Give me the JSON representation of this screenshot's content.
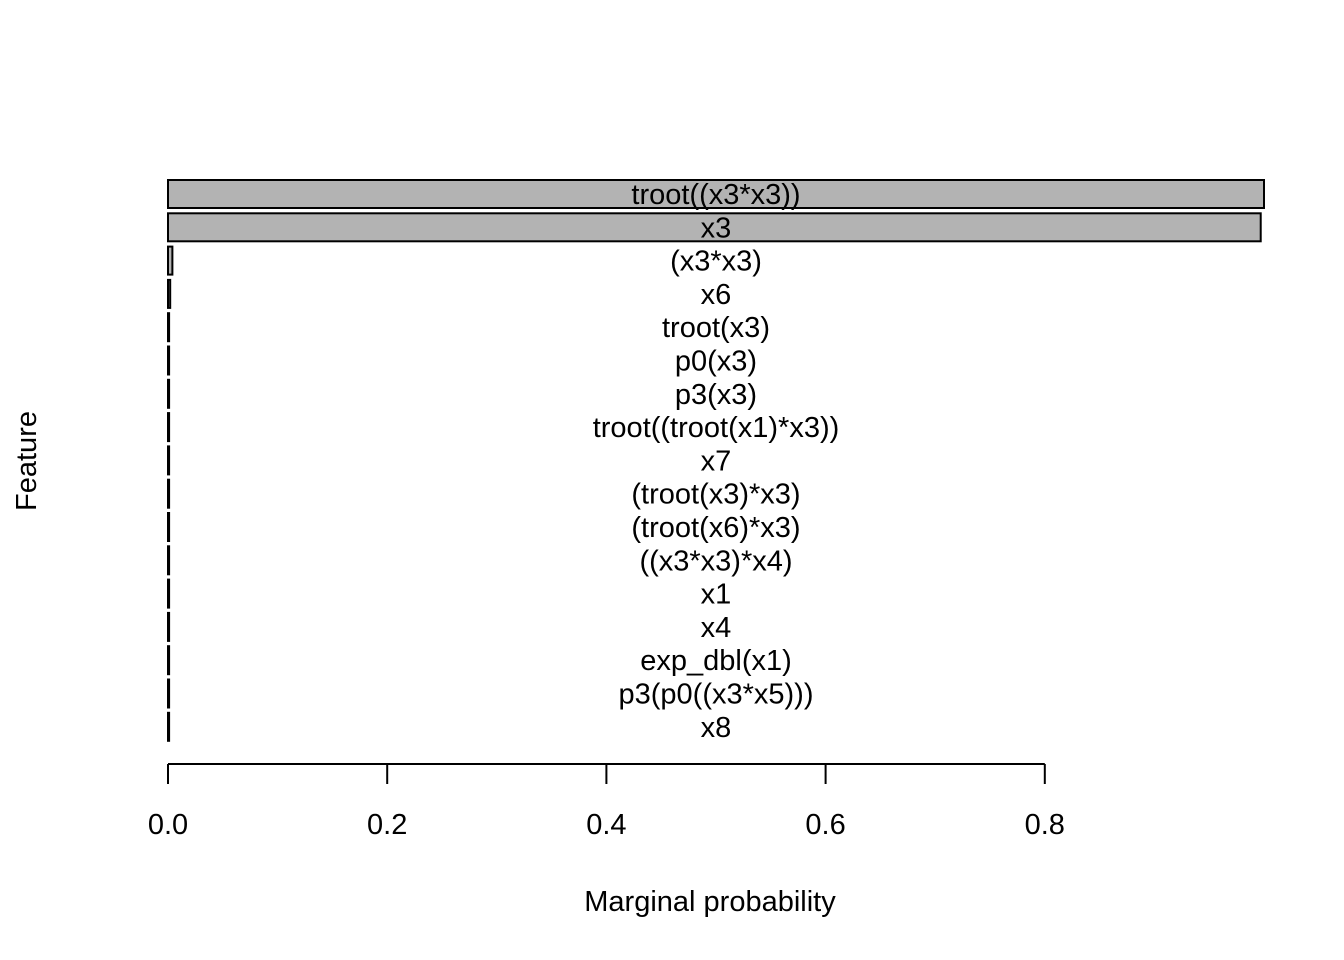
{
  "chart_data": {
    "type": "bar",
    "orientation": "horizontal",
    "title": "",
    "xlabel": "Marginal probability",
    "ylabel": "Feature",
    "xlim": [
      0,
      1
    ],
    "x_ticks": [
      0.0,
      0.2,
      0.4,
      0.6,
      0.8
    ],
    "x_tick_labels": [
      "0.0",
      "0.2",
      "0.4",
      "0.6",
      "0.8"
    ],
    "grid": false,
    "legend": "none",
    "bar_color": "#b3b3b3",
    "outline_color": "#000000",
    "categories": [
      "troot((x3*x3))",
      "x3",
      "(x3*x3)",
      "x6",
      "troot(x3)",
      "p0(x3)",
      "p3(x3)",
      "troot((troot(x1)*x3))",
      "x7",
      "(troot(x3)*x3)",
      "(troot(x6)*x3)",
      "((x3*x3)*x4)",
      "x1",
      "x4",
      "exp_dbl(x1)",
      "p3(p0((x3*x5)))",
      "x8"
    ],
    "values": [
      1.0,
      0.997,
      0.004,
      0.002,
      0.001,
      0.001,
      0.001,
      0.001,
      0.001,
      0.001,
      0.001,
      0.001,
      0.001,
      0.001,
      0.001,
      0.001,
      0.001
    ]
  }
}
